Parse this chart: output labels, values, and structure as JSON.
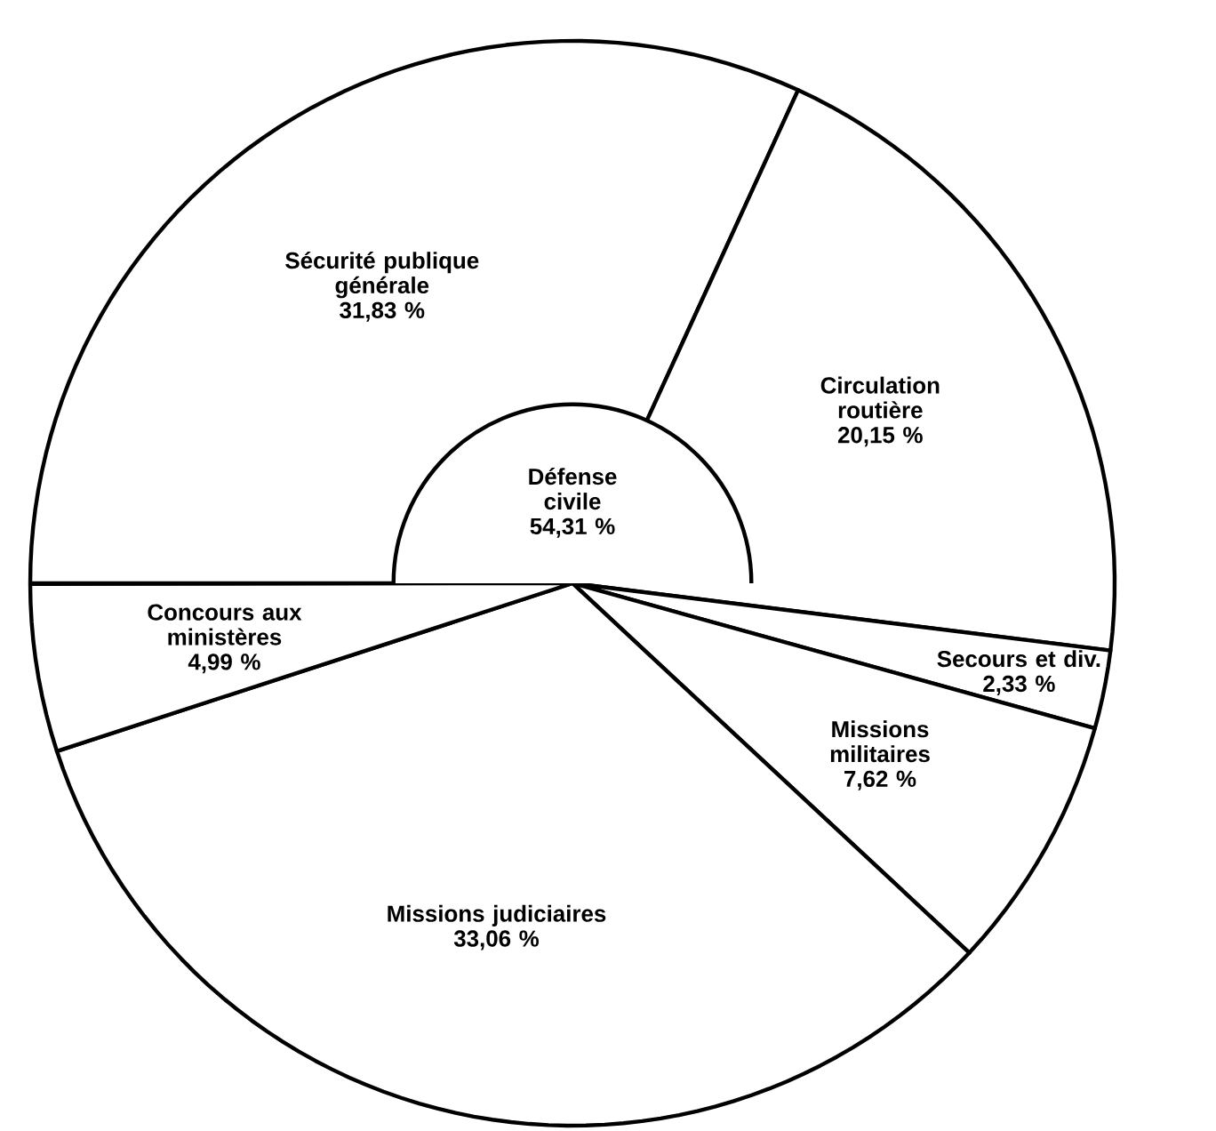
{
  "chart_data": {
    "type": "pie",
    "categories": [
      "Sécurité publique générale",
      "Circulation routière",
      "Secours et div.",
      "Missions militaires",
      "Missions judiciaires",
      "Concours aux ministères"
    ],
    "values": [
      31.83,
      20.15,
      2.33,
      7.62,
      33.06,
      4.99
    ],
    "value_labels": [
      "31,83 %",
      "20,15 %",
      "2,33 %",
      "7,62 %",
      "33,06 %",
      "4,99 %"
    ],
    "colors": [
      "#ffffff",
      "#ffffff",
      "#ffffff",
      "#ffffff",
      "#ffffff",
      "#ffffff"
    ],
    "annotations": [
      "Défense civile 54,31 %"
    ]
  }
}
